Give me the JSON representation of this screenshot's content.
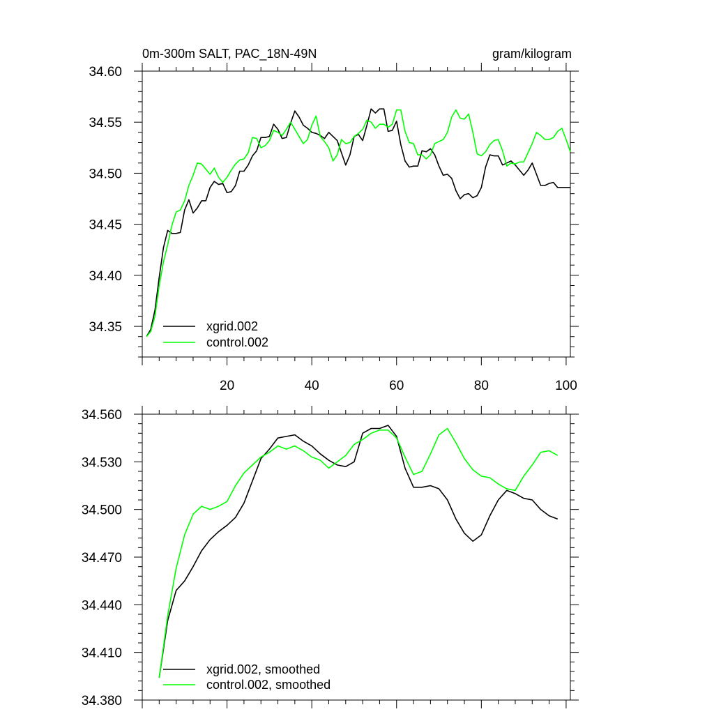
{
  "chart_data": [
    {
      "type": "line",
      "title": "0m-300m SALT, PAC_18N-49N",
      "units": "gram/kilogram",
      "xlabel": "",
      "ylabel": "",
      "xlim": [
        0,
        101
      ],
      "ylim": [
        34.32,
        34.6
      ],
      "xticks": [
        20,
        40,
        60,
        80,
        100
      ],
      "yticks": [
        34.35,
        34.4,
        34.45,
        34.5,
        34.55,
        34.6
      ],
      "ytick_labels": [
        "34.35",
        "34.40",
        "34.45",
        "34.50",
        "34.55",
        "34.60"
      ],
      "legend_location": "bottom-left",
      "series": [
        {
          "name": "xgrid.002",
          "color": "#000000",
          "x": [
            1,
            2,
            3,
            4,
            5,
            6,
            7,
            8,
            9,
            10,
            11,
            12,
            13,
            14,
            15,
            16,
            17,
            18,
            19,
            20,
            21,
            22,
            23,
            24,
            25,
            26,
            27,
            28,
            29,
            30,
            31,
            32,
            33,
            34,
            35,
            36,
            37,
            38,
            39,
            40,
            41,
            42,
            43,
            44,
            45,
            46,
            47,
            48,
            49,
            50,
            51,
            52,
            53,
            54,
            55,
            56,
            57,
            58,
            59,
            60,
            61,
            62,
            63,
            64,
            65,
            66,
            67,
            68,
            69,
            70,
            71,
            72,
            73,
            74,
            75,
            76,
            77,
            78,
            79,
            80,
            81,
            82,
            83,
            84,
            85,
            86,
            87,
            88,
            89,
            90,
            91,
            92,
            93,
            94,
            95,
            96,
            97,
            98,
            99,
            100,
            101
          ],
          "values": [
            34.34,
            34.347,
            34.366,
            34.398,
            34.427,
            34.444,
            34.441,
            34.441,
            34.442,
            34.464,
            34.474,
            34.461,
            34.466,
            34.473,
            34.473,
            34.486,
            34.492,
            34.489,
            34.49,
            34.481,
            34.482,
            34.488,
            34.502,
            34.502,
            34.508,
            34.517,
            34.522,
            34.535,
            34.535,
            34.536,
            34.548,
            34.543,
            34.534,
            34.535,
            34.549,
            34.561,
            34.555,
            34.547,
            34.544,
            34.54,
            34.539,
            34.537,
            34.534,
            34.54,
            34.536,
            34.532,
            34.52,
            34.508,
            34.518,
            34.536,
            34.538,
            34.532,
            34.547,
            34.563,
            34.559,
            34.563,
            34.563,
            34.541,
            34.542,
            34.551,
            34.528,
            34.512,
            34.506,
            34.507,
            34.507,
            34.522,
            34.521,
            34.524,
            34.518,
            34.507,
            34.498,
            34.499,
            34.495,
            34.483,
            34.475,
            34.479,
            34.48,
            34.476,
            34.478,
            34.486,
            34.506,
            34.518,
            34.517,
            34.517,
            34.508,
            34.51,
            34.512,
            34.508,
            34.503,
            34.498,
            34.503,
            34.51,
            34.499,
            34.488,
            34.488,
            34.49,
            34.491,
            34.486,
            34.486,
            34.486,
            34.486
          ]
        },
        {
          "name": "control.002",
          "color": "#00ff00",
          "x": [
            1,
            2,
            3,
            4,
            5,
            6,
            7,
            8,
            9,
            10,
            11,
            12,
            13,
            14,
            15,
            16,
            17,
            18,
            19,
            20,
            21,
            22,
            23,
            24,
            25,
            26,
            27,
            28,
            29,
            30,
            31,
            32,
            33,
            34,
            35,
            36,
            37,
            38,
            39,
            40,
            41,
            42,
            43,
            44,
            45,
            46,
            47,
            48,
            49,
            50,
            51,
            52,
            53,
            54,
            55,
            56,
            57,
            58,
            59,
            60,
            61,
            62,
            63,
            64,
            65,
            66,
            67,
            68,
            69,
            70,
            71,
            72,
            73,
            74,
            75,
            76,
            77,
            78,
            79,
            80,
            81,
            82,
            83,
            84,
            85,
            86,
            87,
            88,
            89,
            90,
            91,
            92,
            93,
            94,
            95,
            96,
            97,
            98,
            99,
            100,
            101
          ],
          "values": [
            34.34,
            34.345,
            34.36,
            34.39,
            34.413,
            34.43,
            34.449,
            34.462,
            34.464,
            34.473,
            34.488,
            34.498,
            34.51,
            34.509,
            34.504,
            34.499,
            34.505,
            34.496,
            34.491,
            34.496,
            34.503,
            34.509,
            34.513,
            34.514,
            34.52,
            34.535,
            34.534,
            34.525,
            34.527,
            34.532,
            34.542,
            34.54,
            34.537,
            34.543,
            34.55,
            34.543,
            34.536,
            34.529,
            34.533,
            34.547,
            34.556,
            34.536,
            34.531,
            34.525,
            34.512,
            34.518,
            34.533,
            34.529,
            34.53,
            34.536,
            34.539,
            34.543,
            34.552,
            34.55,
            34.544,
            34.548,
            34.548,
            34.545,
            34.548,
            34.562,
            34.562,
            34.541,
            34.53,
            34.529,
            34.518,
            34.518,
            34.514,
            34.518,
            34.529,
            34.531,
            34.533,
            34.54,
            34.555,
            34.562,
            34.554,
            34.553,
            34.558,
            34.54,
            34.519,
            34.517,
            34.521,
            34.528,
            34.532,
            34.533,
            34.522,
            34.507,
            34.51,
            34.509,
            34.511,
            34.511,
            34.52,
            34.529,
            34.54,
            34.537,
            34.533,
            34.533,
            34.535,
            34.541,
            34.544,
            34.533,
            34.521
          ]
        }
      ]
    },
    {
      "type": "line",
      "title": "",
      "xlabel": "",
      "ylabel": "",
      "xlim": [
        0,
        101
      ],
      "ylim": [
        34.38,
        34.56
      ],
      "xticks": [
        20,
        40,
        60,
        80,
        100
      ],
      "yticks": [
        34.38,
        34.41,
        34.44,
        34.47,
        34.5,
        34.53,
        34.56
      ],
      "ytick_labels": [
        "34.380",
        "34.410",
        "34.440",
        "34.470",
        "34.500",
        "34.530",
        "34.560"
      ],
      "legend_location": "bottom-left",
      "series": [
        {
          "name": "xgrid.002, smoothed",
          "color": "#000000",
          "x": [
            4,
            6,
            8,
            10,
            12,
            14,
            16,
            18,
            20,
            22,
            24,
            26,
            28,
            30,
            32,
            34,
            36,
            38,
            40,
            42,
            44,
            46,
            48,
            50,
            52,
            54,
            56,
            58,
            60,
            62,
            64,
            66,
            68,
            70,
            72,
            74,
            76,
            78,
            80,
            82,
            84,
            86,
            88,
            90,
            92,
            94,
            96,
            98
          ],
          "values": [
            34.394,
            34.43,
            34.449,
            34.455,
            34.464,
            34.474,
            34.481,
            34.486,
            34.49,
            34.495,
            34.504,
            34.518,
            34.532,
            34.538,
            34.545,
            34.546,
            34.547,
            34.543,
            34.54,
            34.535,
            34.531,
            34.528,
            34.527,
            34.53,
            34.548,
            34.551,
            34.551,
            34.553,
            34.546,
            34.526,
            34.514,
            34.514,
            34.515,
            34.513,
            34.506,
            34.494,
            34.485,
            34.48,
            34.484,
            34.496,
            34.506,
            34.512,
            34.51,
            34.507,
            34.506,
            34.5,
            34.496,
            34.494
          ]
        },
        {
          "name": "control.002, smoothed",
          "color": "#00ff00",
          "x": [
            4,
            6,
            8,
            10,
            12,
            14,
            16,
            18,
            20,
            22,
            24,
            26,
            28,
            30,
            32,
            34,
            36,
            38,
            40,
            42,
            44,
            46,
            48,
            50,
            52,
            54,
            56,
            58,
            60,
            62,
            64,
            66,
            68,
            70,
            72,
            74,
            76,
            78,
            80,
            82,
            84,
            86,
            88,
            90,
            92,
            94,
            96,
            98
          ],
          "values": [
            34.394,
            34.433,
            34.463,
            34.484,
            34.497,
            34.502,
            34.5,
            34.502,
            34.505,
            34.515,
            34.523,
            34.528,
            34.533,
            34.536,
            34.54,
            34.538,
            34.54,
            34.537,
            34.533,
            34.531,
            34.526,
            34.53,
            34.534,
            34.541,
            34.544,
            34.548,
            34.55,
            34.55,
            34.545,
            34.533,
            34.522,
            34.524,
            34.535,
            34.547,
            34.551,
            34.542,
            34.532,
            34.525,
            34.521,
            34.52,
            34.516,
            34.513,
            34.512,
            34.521,
            34.528,
            34.536,
            34.537,
            34.534
          ]
        }
      ]
    }
  ]
}
